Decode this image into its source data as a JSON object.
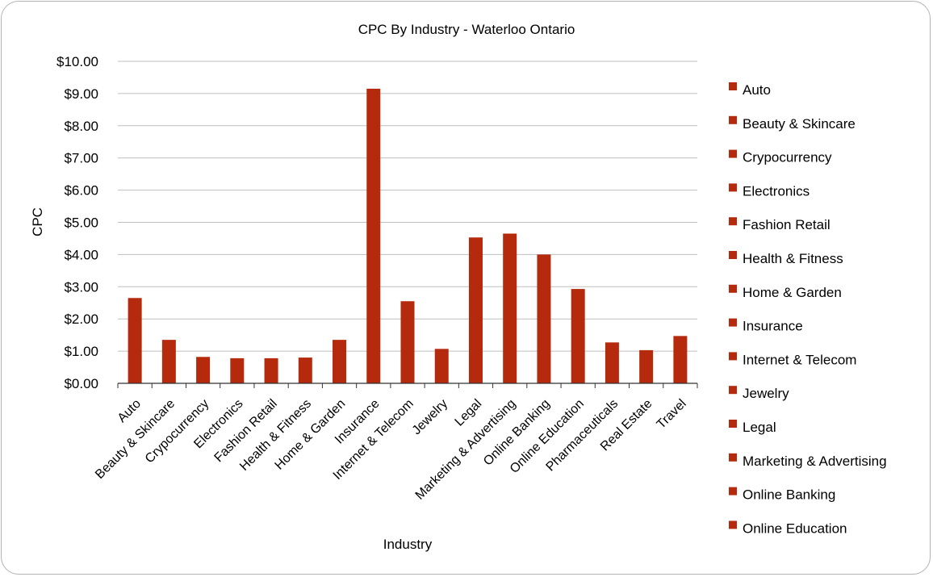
{
  "chart_data": {
    "type": "bar",
    "title": "CPC By Industry - Waterloo Ontario",
    "xlabel": "Industry",
    "ylabel": "CPC",
    "ylim": [
      0,
      10
    ],
    "yticks": [
      "$0.00",
      "$1.00",
      "$2.00",
      "$3.00",
      "$4.00",
      "$5.00",
      "$6.00",
      "$7.00",
      "$8.00",
      "$9.00",
      "$10.00"
    ],
    "grid": true,
    "legend_position": "right",
    "bar_color": "#b52a0c",
    "categories": [
      "Auto",
      "Beauty & Skincare",
      "Crypocurrency",
      "Electronics",
      "Fashion Retail",
      "Health & Fitness",
      "Home & Garden",
      "Insurance",
      "Internet & Telecom",
      "Jewelry",
      "Legal",
      "Marketing & Advertising",
      "Online Banking",
      "Online Education",
      "Pharmaceuticals",
      "Real Estate",
      "Travel"
    ],
    "values": [
      2.65,
      1.35,
      0.82,
      0.78,
      0.78,
      0.8,
      1.35,
      9.15,
      2.55,
      1.07,
      4.53,
      4.65,
      4.0,
      2.93,
      1.27,
      1.03,
      1.47
    ],
    "legend": [
      "Auto",
      "Beauty & Skincare",
      "Crypocurrency",
      "Electronics",
      "Fashion Retail",
      "Health & Fitness",
      "Home & Garden",
      "Insurance",
      "Internet & Telecom",
      "Jewelry",
      "Legal",
      "Marketing & Advertising",
      "Online Banking",
      "Online Education"
    ]
  }
}
